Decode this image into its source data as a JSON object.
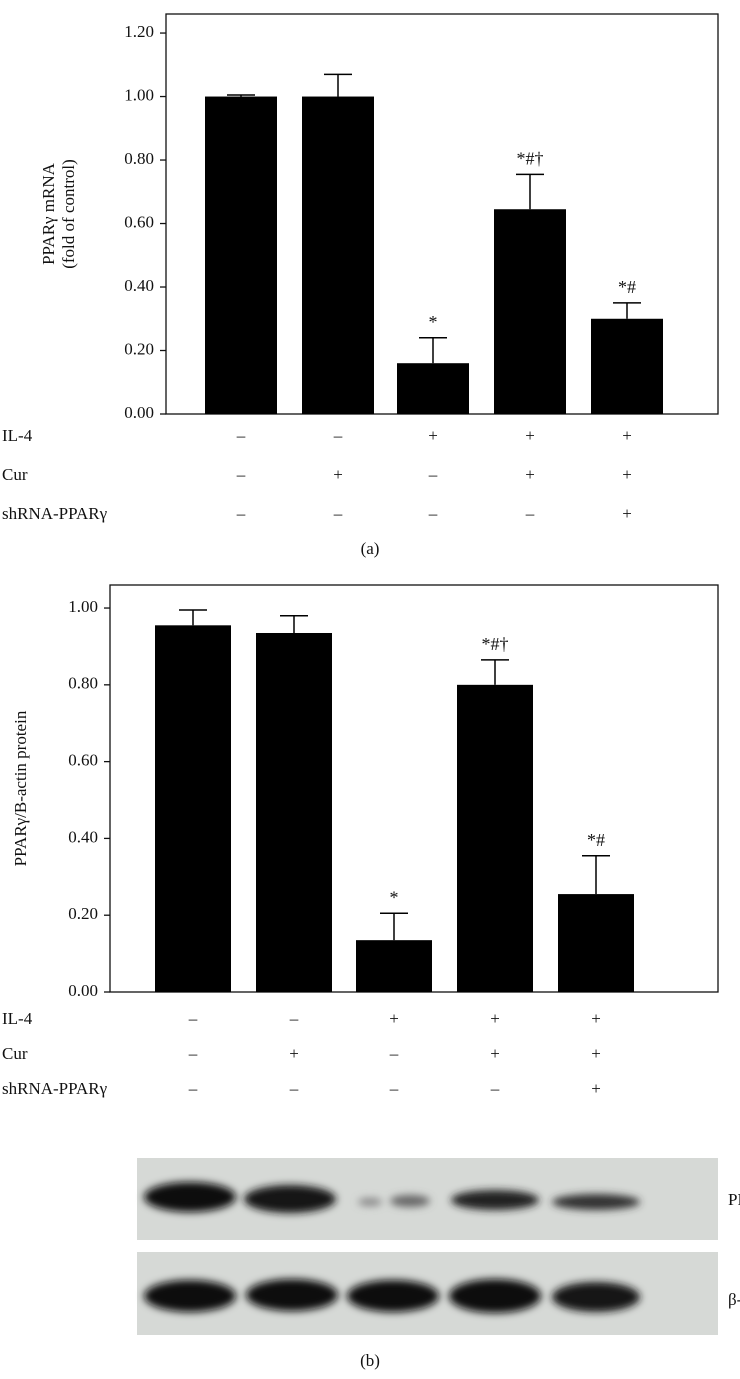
{
  "chart_data": [
    {
      "type": "bar",
      "panel_label": "(a)",
      "ylabel": [
        "PPARγ mRNA",
        "(fold of control)"
      ],
      "color": "#000000",
      "values": [
        1.0,
        1.0,
        0.16,
        0.645,
        0.3
      ],
      "errors": [
        0.005,
        0.07,
        0.08,
        0.11,
        0.05
      ],
      "value_annotations": [
        null,
        null,
        "*",
        "*#†",
        "*#"
      ],
      "ylim": [
        0,
        1.26
      ],
      "yticks": [
        {
          "value": 0,
          "label": "0.00"
        },
        {
          "value": 0.2,
          "label": "0.20"
        },
        {
          "value": 0.4,
          "label": "0.40"
        },
        {
          "value": 0.6,
          "label": "0.60"
        },
        {
          "value": 0.8,
          "label": "0.80"
        },
        {
          "value": 1.0,
          "label": "1.00"
        },
        {
          "value": 1.2,
          "label": "1.20"
        }
      ],
      "condition_rows": [
        {
          "label": "IL-4",
          "signs": [
            "–",
            "–",
            "+",
            "+",
            "+"
          ]
        },
        {
          "label": "Cur",
          "signs": [
            "–",
            "+",
            "–",
            "+",
            "+"
          ]
        },
        {
          "label": "shRNA-PPARγ",
          "signs": [
            "–",
            "–",
            "–",
            "–",
            "+"
          ]
        }
      ]
    },
    {
      "type": "bar",
      "panel_label": "(b)",
      "ylabel": [
        "PPARγ/B-actin protein"
      ],
      "color": "#000000",
      "values": [
        0.955,
        0.935,
        0.135,
        0.8,
        0.255
      ],
      "errors": [
        0.04,
        0.045,
        0.07,
        0.065,
        0.1
      ],
      "value_annotations": [
        null,
        null,
        "*",
        "*#†",
        "*#"
      ],
      "ylim": [
        0,
        1.06
      ],
      "yticks": [
        {
          "value": 0,
          "label": "0.00"
        },
        {
          "value": 0.2,
          "label": "0.20"
        },
        {
          "value": 0.4,
          "label": "0.40"
        },
        {
          "value": 0.6,
          "label": "0.60"
        },
        {
          "value": 0.8,
          "label": "0.80"
        },
        {
          "value": 1.0,
          "label": "1.00"
        }
      ],
      "condition_rows": [
        {
          "label": "IL-4",
          "signs": [
            "–",
            "–",
            "+",
            "+",
            "+"
          ]
        },
        {
          "label": "Cur",
          "signs": [
            "–",
            "+",
            "–",
            "+",
            "+"
          ]
        },
        {
          "label": "shRNA-PPARγ",
          "signs": [
            "–",
            "–",
            "–",
            "–",
            "+"
          ]
        }
      ],
      "blot_labels": [
        "PPARγ",
        "β-Actin"
      ]
    }
  ]
}
